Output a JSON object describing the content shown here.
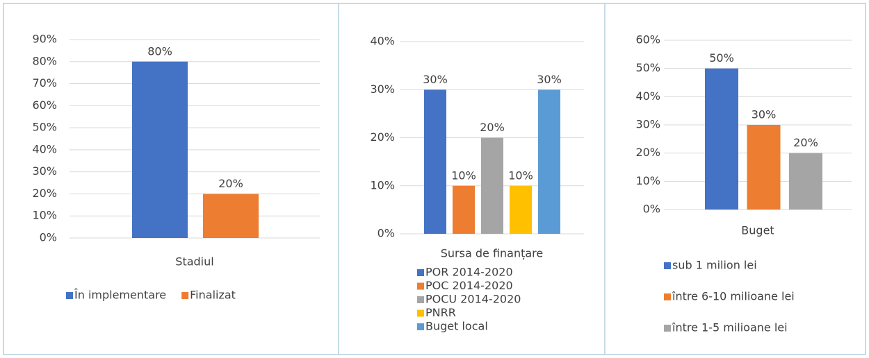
{
  "chart_data": [
    {
      "type": "bar",
      "categories": [
        "Stadiul"
      ],
      "ylim": [
        0,
        90
      ],
      "yticks": [
        {
          "value": 0,
          "label": "0%"
        },
        {
          "value": 10,
          "label": "10%"
        },
        {
          "value": 20,
          "label": "20%"
        },
        {
          "value": 30,
          "label": "30%"
        },
        {
          "value": 40,
          "label": "40%"
        },
        {
          "value": 50,
          "label": "50%"
        },
        {
          "value": 60,
          "label": "60%"
        },
        {
          "value": 70,
          "label": "70%"
        },
        {
          "value": 80,
          "label": "80%"
        },
        {
          "value": 90,
          "label": "90%"
        }
      ],
      "grid": true,
      "series": [
        {
          "name": "În implementare",
          "color": "#4472c4",
          "values": [
            80
          ],
          "value_labels": [
            "80%"
          ]
        },
        {
          "name": "Finalizat",
          "color": "#ed7d31",
          "values": [
            20
          ],
          "value_labels": [
            "20%"
          ]
        }
      ]
    },
    {
      "type": "bar",
      "categories": [
        "Sursa de finanțare"
      ],
      "ylim": [
        0,
        40
      ],
      "yticks": [
        {
          "value": 0,
          "label": "0%"
        },
        {
          "value": 10,
          "label": "10%"
        },
        {
          "value": 20,
          "label": "20%"
        },
        {
          "value": 30,
          "label": "30%"
        },
        {
          "value": 40,
          "label": "40%"
        }
      ],
      "grid": true,
      "series": [
        {
          "name": "POR 2014-2020",
          "color": "#4472c4",
          "values": [
            30
          ],
          "value_labels": [
            "30%"
          ]
        },
        {
          "name": "POC 2014-2020",
          "color": "#ed7d31",
          "values": [
            10
          ],
          "value_labels": [
            "10%"
          ]
        },
        {
          "name": "POCU 2014-2020",
          "color": "#a5a5a5",
          "values": [
            20
          ],
          "value_labels": [
            "20%"
          ]
        },
        {
          "name": "PNRR",
          "color": "#ffc000",
          "values": [
            10
          ],
          "value_labels": [
            "10%"
          ]
        },
        {
          "name": "Buget local",
          "color": "#5b9bd5",
          "values": [
            30
          ],
          "value_labels": [
            "30%"
          ]
        }
      ]
    },
    {
      "type": "bar",
      "categories": [
        "Buget"
      ],
      "ylim": [
        0,
        60
      ],
      "yticks": [
        {
          "value": 0,
          "label": "0%"
        },
        {
          "value": 10,
          "label": "10%"
        },
        {
          "value": 20,
          "label": "20%"
        },
        {
          "value": 30,
          "label": "30%"
        },
        {
          "value": 40,
          "label": "40%"
        },
        {
          "value": 50,
          "label": "50%"
        },
        {
          "value": 60,
          "label": "60%"
        }
      ],
      "grid": true,
      "series": [
        {
          "name": "sub 1 milion lei",
          "color": "#4472c4",
          "values": [
            50
          ],
          "value_labels": [
            "50%"
          ]
        },
        {
          "name": "între 6-10 milioane lei",
          "color": "#ed7d31",
          "values": [
            30
          ],
          "value_labels": [
            "30%"
          ]
        },
        {
          "name": "între 1-5 milioane lei",
          "color": "#a5a5a5",
          "values": [
            20
          ],
          "value_labels": [
            "20%"
          ]
        }
      ]
    }
  ]
}
